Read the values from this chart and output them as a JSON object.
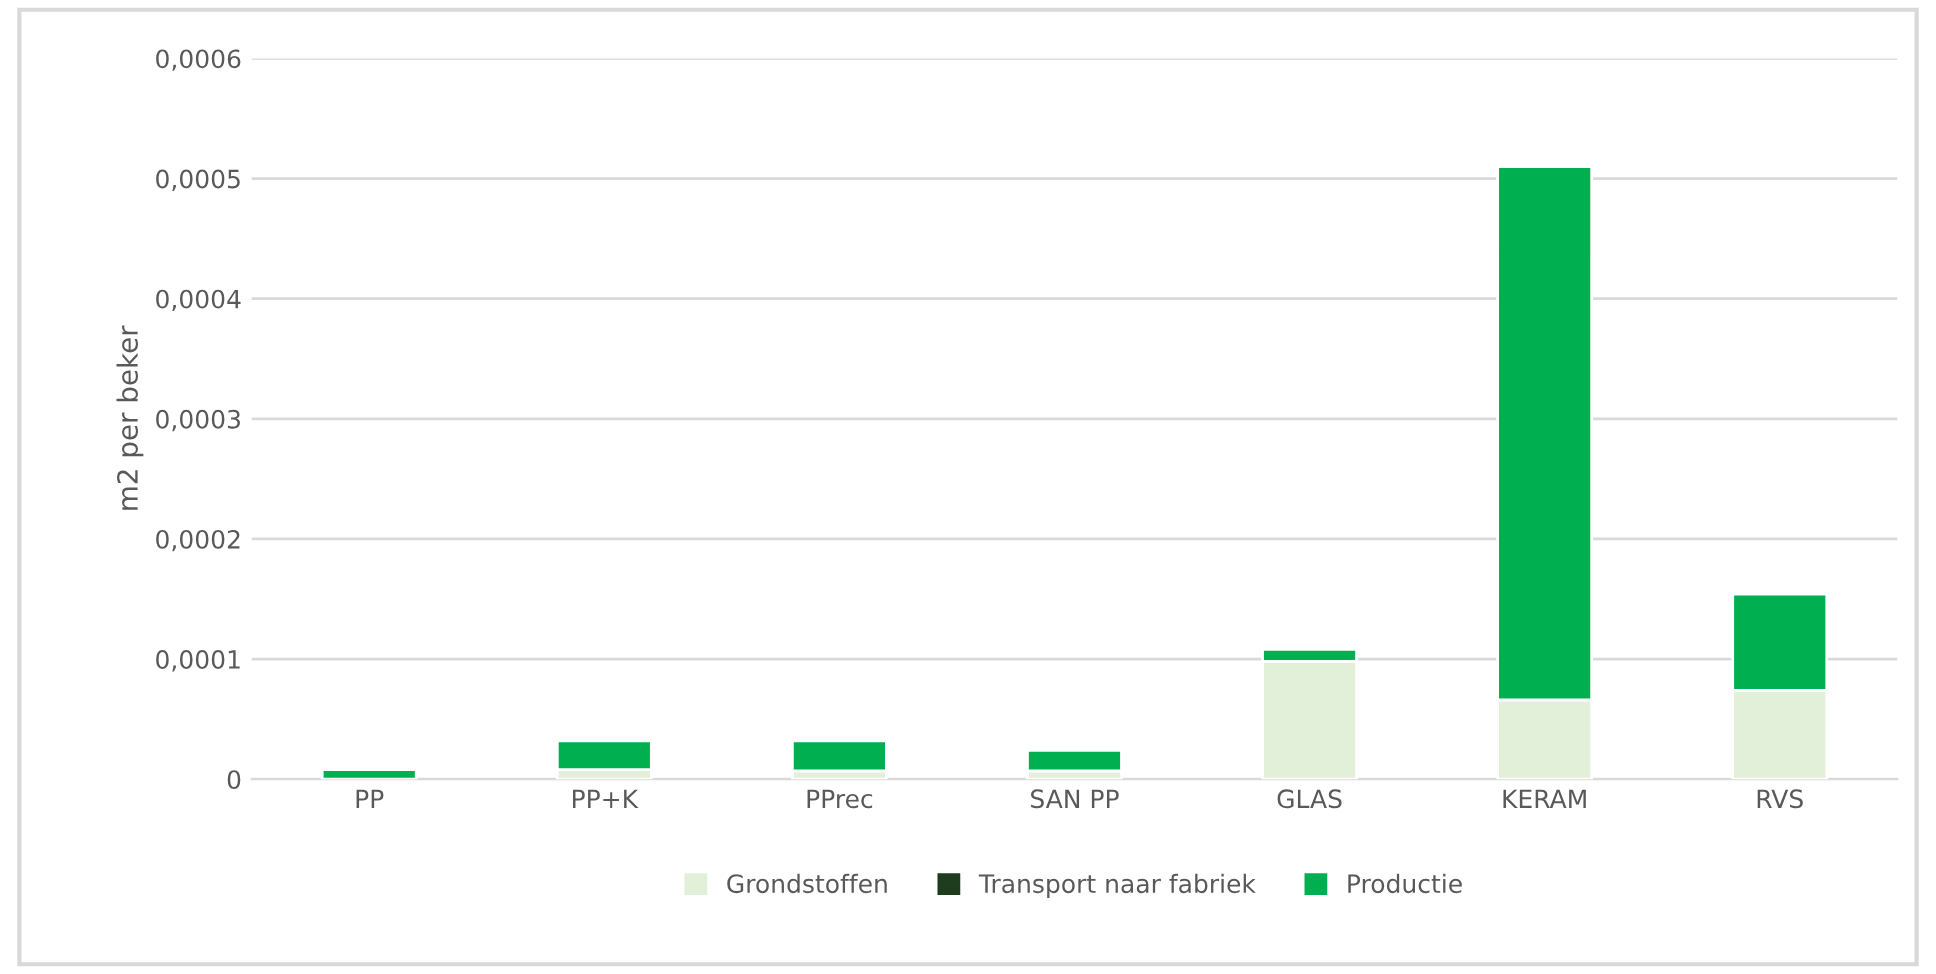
{
  "chart_data": {
    "type": "bar",
    "stacked": true,
    "ylabel": "m2 per beker",
    "categories": [
      "PP",
      "PP+K",
      "PPrec",
      "SAN PP",
      "GLAS",
      "KERAM",
      "RVS"
    ],
    "series": [
      {
        "name": "Grondstoffen",
        "color": "#e2efd9",
        "values": [
          0,
          8e-06,
          7e-06,
          7e-06,
          9.8e-05,
          6.6e-05,
          7.4e-05
        ]
      },
      {
        "name": "Transport naar fabriek",
        "color": "#1e3d1e",
        "values": [
          0,
          0,
          0,
          0,
          0,
          0,
          0
        ]
      },
      {
        "name": "Productie",
        "color": "#00b050",
        "values": [
          8e-06,
          2.4e-05,
          2.5e-05,
          1.7e-05,
          1e-05,
          0.000444,
          8e-05
        ]
      }
    ],
    "ylim": [
      0,
      0.0006
    ],
    "yticks": [
      {
        "value": 0,
        "label": "0"
      },
      {
        "value": 0.0001,
        "label": "0,0001"
      },
      {
        "value": 0.0002,
        "label": "0,0002"
      },
      {
        "value": 0.0003,
        "label": "0,0003"
      },
      {
        "value": 0.0004,
        "label": "0,0004"
      },
      {
        "value": 0.0005,
        "label": "0,0005"
      },
      {
        "value": 0.0006,
        "label": "0,0006"
      }
    ],
    "grid": "y",
    "legend": "bottom"
  }
}
